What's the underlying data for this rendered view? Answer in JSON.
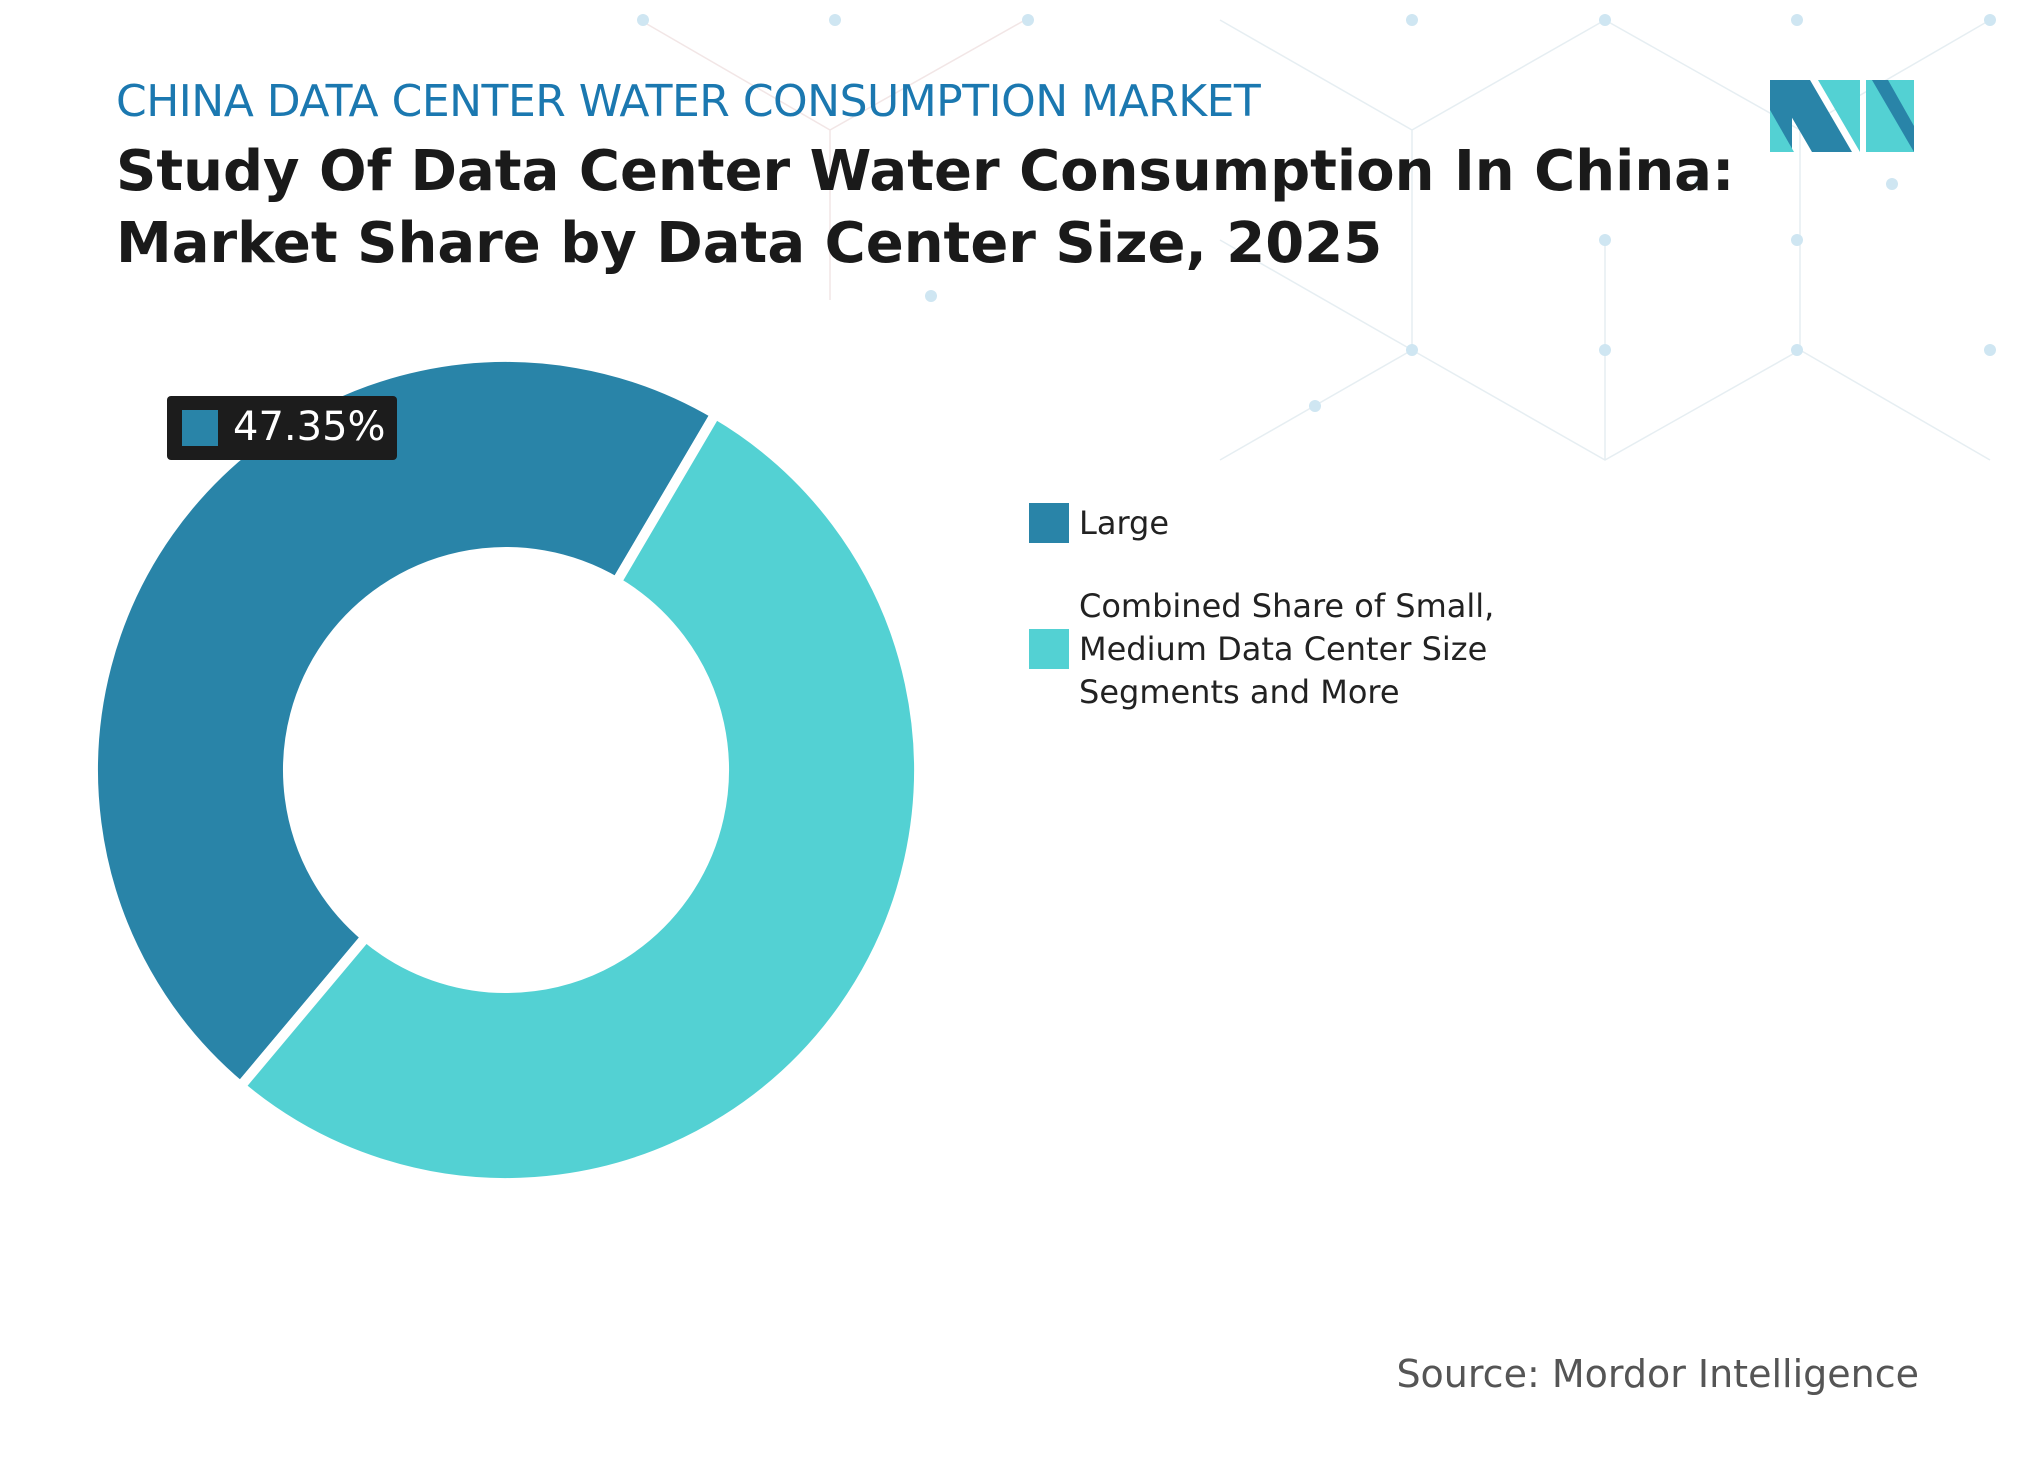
{
  "header": {
    "kicker": "CHINA DATA CENTER WATER CONSUMPTION MARKET",
    "source": "Source: Mordor Intelligence"
  },
  "chart_data": {
    "type": "pie",
    "donut": true,
    "title": "Study Of Data Center Water Consumption In China: Market Share by Data Center Size, 2025",
    "categories": [
      "Large",
      "Combined Share of Small, Medium Data Center Size Segments and More"
    ],
    "values": [
      47.35,
      52.65
    ],
    "value_labels": [
      "47.35%",
      null
    ],
    "colors": [
      "#2984a8",
      "#53d1d3"
    ]
  }
}
